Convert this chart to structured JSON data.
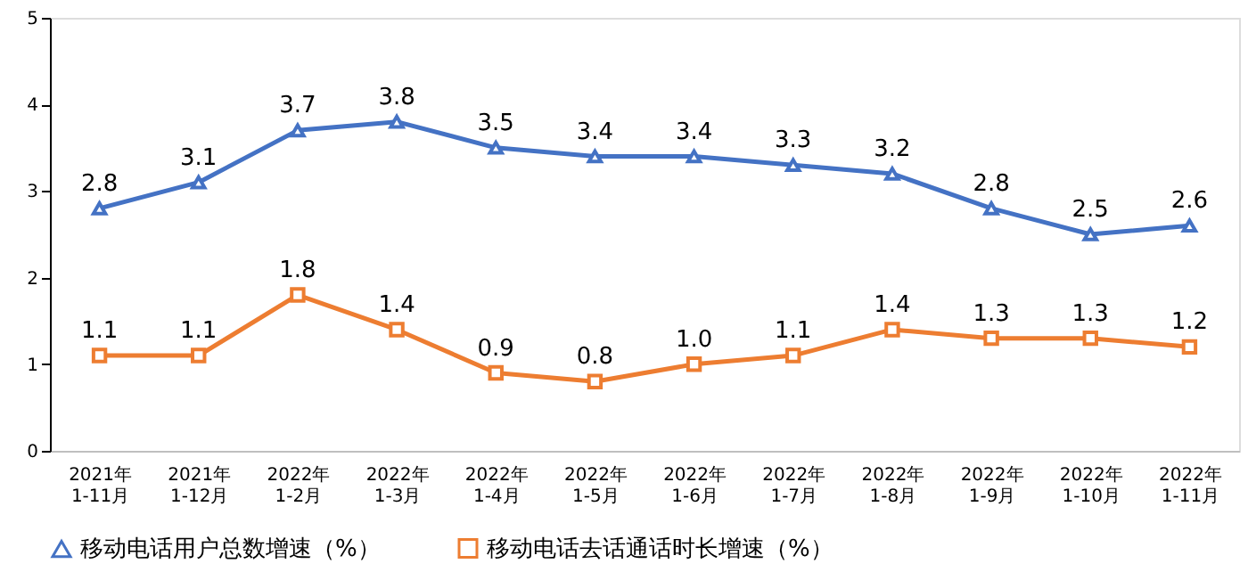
{
  "chart_data": {
    "type": "line",
    "categories": [
      "2021年\n1-11月",
      "2021年\n1-12月",
      "2022年\n1-2月",
      "2022年\n1-3月",
      "2022年\n1-4月",
      "2022年\n1-5月",
      "2022年\n1-6月",
      "2022年\n1-7月",
      "2022年\n1-8月",
      "2022年\n1-9月",
      "2022年\n1-10月",
      "2022年\n1-11月"
    ],
    "series": [
      {
        "name": "移动电话用户总数增速（%）",
        "color": "#4472c4",
        "marker": "triangle",
        "values": [
          2.8,
          3.1,
          3.7,
          3.8,
          3.5,
          3.4,
          3.4,
          3.3,
          3.2,
          2.8,
          2.5,
          2.6
        ],
        "value_labels": [
          "2.8",
          "3.1",
          "3.7",
          "3.8",
          "3.5",
          "3.4",
          "3.4",
          "3.3",
          "3.2",
          "2.8",
          "2.5",
          "2.6"
        ]
      },
      {
        "name": "移动电话去话通话时长增速（%）",
        "color": "#ed7d31",
        "marker": "square",
        "values": [
          1.1,
          1.1,
          1.8,
          1.4,
          0.9,
          0.8,
          1.0,
          1.1,
          1.4,
          1.3,
          1.3,
          1.2
        ],
        "value_labels": [
          "1.1",
          "1.1",
          "1.8",
          "1.4",
          "0.9",
          "0.8",
          "1.0",
          "1.1",
          "1.4",
          "1.3",
          "1.3",
          "1.2"
        ]
      }
    ],
    "ylim": [
      0,
      5
    ],
    "yticks": [
      0,
      1,
      2,
      3,
      4,
      5
    ],
    "grid": false,
    "legend": "bottom",
    "line_style": "solid"
  }
}
